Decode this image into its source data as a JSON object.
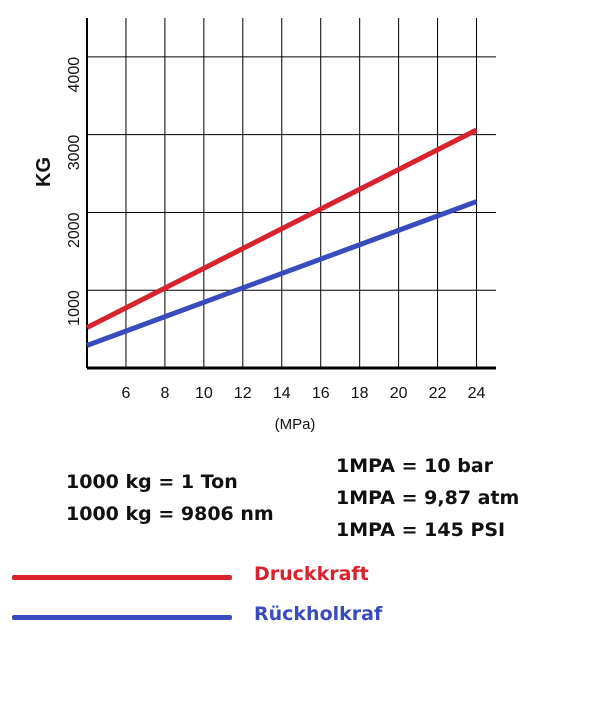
{
  "chart_data": {
    "type": "line",
    "title": "",
    "xlabel": "(MPa)",
    "ylabel": "KG",
    "xlim": [
      4,
      25
    ],
    "ylim": [
      0,
      4500
    ],
    "xticks": [
      6,
      8,
      10,
      12,
      14,
      16,
      18,
      20,
      22,
      24
    ],
    "yticks": [
      1000,
      2000,
      3000,
      4000
    ],
    "grid": true,
    "series": [
      {
        "name": "Druckkraft",
        "color": "#d8232f",
        "x": [
          4,
          24
        ],
        "y": [
          520,
          3060
        ]
      },
      {
        "name": "Rückholkraf",
        "color": "#3a4bbd",
        "x": [
          4,
          24
        ],
        "y": [
          290,
          2140
        ]
      }
    ]
  },
  "notes_left": [
    "1000 kg = 1 Ton",
    "1000 kg = 9806 nm"
  ],
  "notes_right": [
    "1MPA = 10 bar",
    "1MPA = 9,87 atm",
    "1MPA = 145 PSI"
  ],
  "legend": [
    {
      "label": "Druckkraft",
      "color": "#d8232f"
    },
    {
      "label": "Rückholkraf",
      "color": "#3a4bbd"
    }
  ]
}
